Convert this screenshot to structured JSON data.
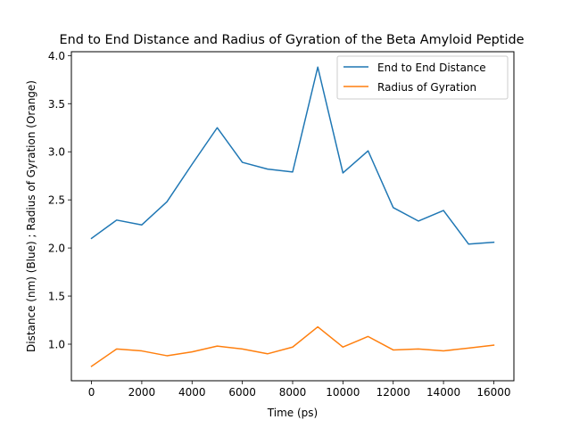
{
  "chart_data": {
    "type": "line",
    "title": "End to End Distance and Radius of Gyration of the Beta Amyloid Peptide",
    "xlabel": "Time (ps)",
    "ylabel": "Distance (nm) (Blue) ; Radius of Gyration (Orange)",
    "xlim": [
      -800,
      16800
    ],
    "ylim": [
      0.62,
      4.04
    ],
    "xticks": [
      0,
      2000,
      4000,
      6000,
      8000,
      10000,
      12000,
      14000,
      16000
    ],
    "yticks": [
      1.0,
      1.5,
      2.0,
      2.5,
      3.0,
      3.5,
      4.0
    ],
    "ytick_labels": [
      "1.0",
      "1.5",
      "2.0",
      "2.5",
      "3.0",
      "3.5",
      "4.0"
    ],
    "grid": false,
    "legend_position": "top-right",
    "x": [
      0,
      1000,
      2000,
      3000,
      4000,
      5000,
      6000,
      7000,
      8000,
      9000,
      10000,
      11000,
      12000,
      13000,
      14000,
      15000,
      16000
    ],
    "series": [
      {
        "name": "End to End Distance",
        "color": "#1f77b4",
        "values": [
          2.1,
          2.29,
          2.24,
          2.48,
          2.87,
          3.25,
          2.89,
          2.82,
          2.79,
          3.88,
          2.78,
          3.01,
          2.42,
          2.28,
          2.39,
          2.04,
          2.06
        ]
      },
      {
        "name": "Radius of Gyration",
        "color": "#ff7f0e",
        "values": [
          0.77,
          0.95,
          0.93,
          0.88,
          0.92,
          0.98,
          0.95,
          0.9,
          0.97,
          1.18,
          0.97,
          1.08,
          0.94,
          0.95,
          0.93,
          0.96,
          0.99
        ]
      }
    ]
  }
}
